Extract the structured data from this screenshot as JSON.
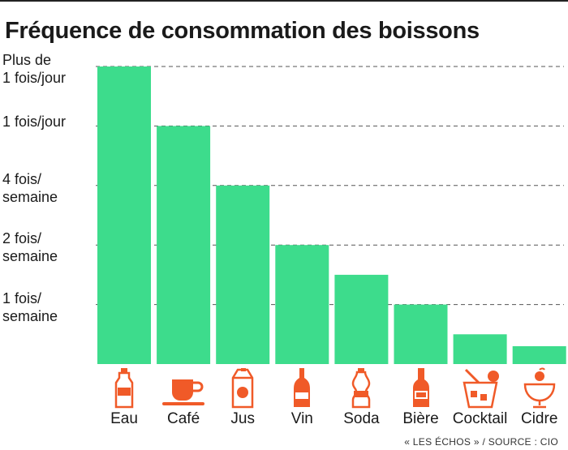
{
  "title": "Fréquence de consommation des boissons",
  "source": "« LES ÉCHOS » / SOURCE : CIO",
  "colors": {
    "bar": "#3ddc8c",
    "icon": "#f05a28",
    "grid": "#555555"
  },
  "chart_data": {
    "type": "bar",
    "title": "Fréquence de consommation des boissons",
    "xlabel": "",
    "ylabel": "",
    "grid": true,
    "categories": [
      "Eau",
      "Café",
      "Jus",
      "Vin",
      "Soda",
      "Bière",
      "Cocktail",
      "Cidre"
    ],
    "icons": [
      "water-bottle-icon",
      "coffee-cup-icon",
      "juice-carton-icon",
      "wine-bottle-icon",
      "soda-bottle-icon",
      "beer-bottle-icon",
      "cocktail-glass-icon",
      "cider-glass-icon"
    ],
    "values": [
      5,
      4,
      3,
      2,
      1.5,
      1,
      0.5,
      0.3
    ],
    "ylim": [
      0,
      5
    ],
    "y_ticks": [
      {
        "value": 1,
        "lines": [
          "1 fois/",
          "semaine"
        ]
      },
      {
        "value": 2,
        "lines": [
          "2 fois/",
          "semaine"
        ]
      },
      {
        "value": 3,
        "lines": [
          "4 fois/",
          "semaine"
        ]
      },
      {
        "value": 4,
        "lines": [
          "1 fois/jour"
        ]
      },
      {
        "value": 5,
        "lines": [
          "Plus de",
          "1 fois/jour"
        ]
      }
    ]
  }
}
